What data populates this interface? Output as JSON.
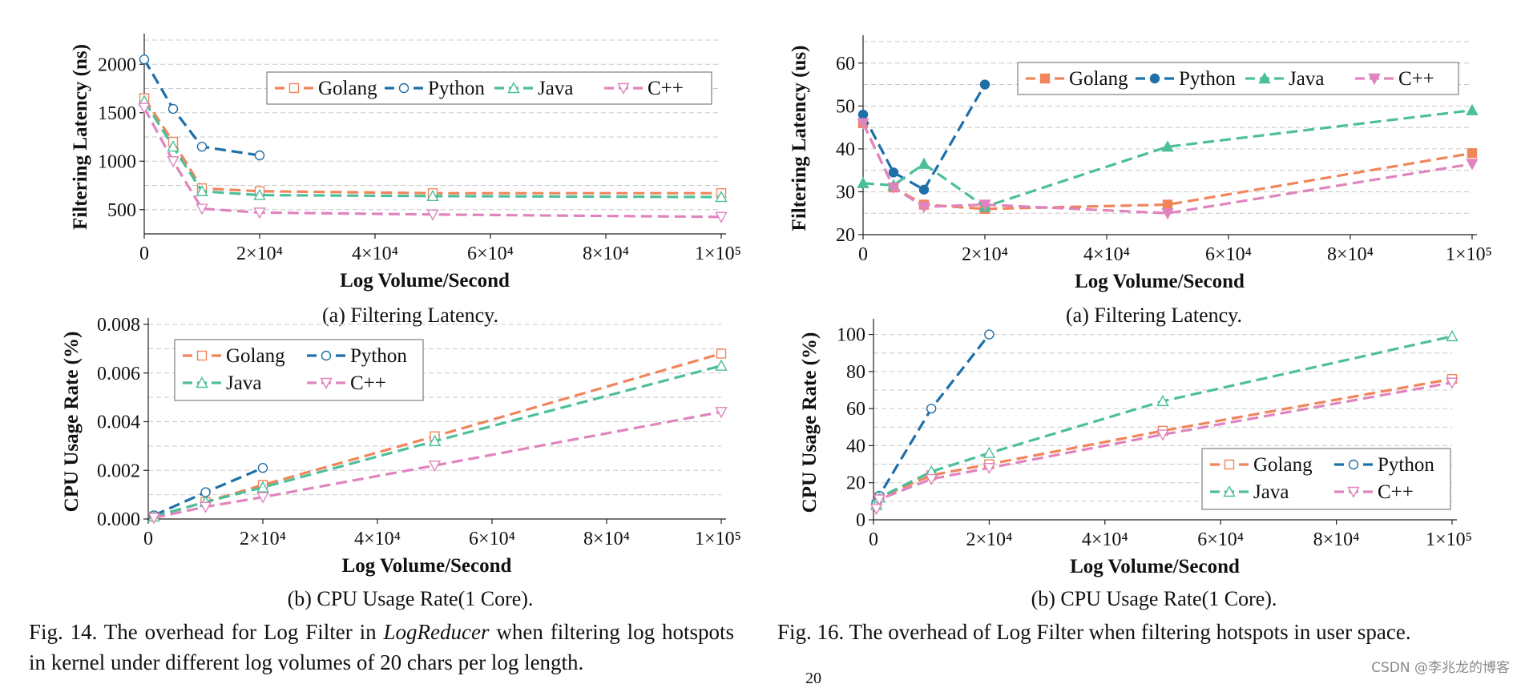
{
  "colors": {
    "Golang": "#f0855a",
    "Python": "#1f6fa8",
    "Java": "#4cbf9a",
    "C++": "#e084bf",
    "grid": "#c8c8c8"
  },
  "chart_data": [
    {
      "id": "fig14a",
      "type": "line",
      "ylabel": "Filtering Latency (ns)",
      "xlabel": "Log Volume/Second",
      "subcaption": "(a) Filtering Latency.",
      "xlim": [
        0,
        100000
      ],
      "ylim": [
        250,
        2250
      ],
      "yticks": [
        500,
        1000,
        1500,
        2000
      ],
      "ytick_labels": [
        "500",
        "1000",
        "1500",
        "2000"
      ],
      "xticks": [
        0,
        20000,
        40000,
        60000,
        80000,
        100000
      ],
      "xtick_labels": [
        "0",
        "2×10⁴",
        "4×10⁴",
        "6×10⁴",
        "8×10⁴",
        "1×10⁵"
      ],
      "minor_grid": true,
      "legend": {
        "position": "top-right",
        "columns": 4
      },
      "markers": "hollow",
      "series": [
        {
          "name": "Golang",
          "marker": "square",
          "x": [
            0,
            5000,
            10000,
            20000,
            50000,
            100000
          ],
          "y": [
            1650,
            1200,
            720,
            690,
            670,
            670
          ]
        },
        {
          "name": "Python",
          "marker": "circle",
          "x": [
            0,
            5000,
            10000,
            20000
          ],
          "y": [
            2050,
            1540,
            1150,
            1060
          ]
        },
        {
          "name": "Java",
          "marker": "triangle-up",
          "x": [
            0,
            5000,
            10000,
            20000,
            50000,
            100000
          ],
          "y": [
            1620,
            1150,
            690,
            650,
            640,
            630
          ]
        },
        {
          "name": "C++",
          "marker": "triangle-down",
          "x": [
            0,
            5000,
            10000,
            20000,
            50000,
            100000
          ],
          "y": [
            1550,
            1000,
            510,
            470,
            450,
            425
          ]
        }
      ]
    },
    {
      "id": "fig14b",
      "type": "line",
      "ylabel": "CPU Usage Rate (%)",
      "xlabel": "Log Volume/Second",
      "subcaption": "(b) CPU Usage Rate(1 Core).",
      "xlim": [
        0,
        100000
      ],
      "ylim": [
        0,
        0.008
      ],
      "yticks": [
        0,
        0.002,
        0.004,
        0.006,
        0.008
      ],
      "ytick_labels": [
        "0.000",
        "0.002",
        "0.004",
        "0.006",
        "0.008"
      ],
      "xticks": [
        0,
        20000,
        40000,
        60000,
        80000,
        100000
      ],
      "xtick_labels": [
        "0",
        "2×10⁴",
        "4×10⁴",
        "6×10⁴",
        "8×10⁴",
        "1×10⁵"
      ],
      "minor_grid": true,
      "legend": {
        "position": "top-left",
        "columns": 2
      },
      "markers": "hollow",
      "series": [
        {
          "name": "Golang",
          "marker": "square",
          "x": [
            1000,
            10000,
            20000,
            50000,
            100000
          ],
          "y": [
            0.0001,
            0.0007,
            0.0014,
            0.0034,
            0.0068
          ]
        },
        {
          "name": "Python",
          "marker": "circle",
          "x": [
            1000,
            10000,
            20000
          ],
          "y": [
            0.00015,
            0.0011,
            0.0021
          ]
        },
        {
          "name": "Java",
          "marker": "triangle-up",
          "x": [
            1000,
            10000,
            20000,
            50000,
            100000
          ],
          "y": [
            0.0001,
            0.0007,
            0.0013,
            0.0032,
            0.0063
          ]
        },
        {
          "name": "C++",
          "marker": "triangle-down",
          "x": [
            1000,
            10000,
            20000,
            50000,
            100000
          ],
          "y": [
            5e-05,
            0.0005,
            0.0009,
            0.0022,
            0.0044
          ]
        }
      ]
    },
    {
      "id": "fig16a",
      "type": "line",
      "ylabel": "Filtering Latency (us)",
      "xlabel": "Log Volume/Second",
      "subcaption": "(a) Filtering Latency.",
      "xlim": [
        0,
        100000
      ],
      "ylim": [
        20,
        65
      ],
      "yticks": [
        20,
        30,
        40,
        50,
        60
      ],
      "ytick_labels": [
        "20",
        "30",
        "40",
        "50",
        "60"
      ],
      "xticks": [
        0,
        20000,
        40000,
        60000,
        80000,
        100000
      ],
      "xtick_labels": [
        "0",
        "2×10⁴",
        "4×10⁴",
        "6×10⁴",
        "8×10⁴",
        "1×10⁵"
      ],
      "minor_grid": true,
      "legend": {
        "position": "top",
        "columns": 4
      },
      "markers": "filled",
      "series": [
        {
          "name": "Golang",
          "marker": "square",
          "x": [
            0,
            5000,
            10000,
            20000,
            50000,
            100000
          ],
          "y": [
            46,
            31,
            27,
            26,
            27,
            39
          ]
        },
        {
          "name": "Python",
          "marker": "circle",
          "x": [
            0,
            5000,
            10000,
            20000
          ],
          "y": [
            48,
            34.5,
            30.5,
            55
          ]
        },
        {
          "name": "Java",
          "marker": "triangle-up",
          "x": [
            0,
            5000,
            10000,
            20000,
            50000,
            100000
          ],
          "y": [
            32,
            31.5,
            36.5,
            26.5,
            40.5,
            49
          ]
        },
        {
          "name": "C++",
          "marker": "triangle-down",
          "x": [
            0,
            5000,
            10000,
            20000,
            50000,
            100000
          ],
          "y": [
            46,
            31,
            26.5,
            27,
            25,
            36.5
          ]
        }
      ]
    },
    {
      "id": "fig16b",
      "type": "line",
      "ylabel": "CPU Usage Rate (%)",
      "xlabel": "Log Volume/Second",
      "subcaption": "(b) CPU Usage Rate(1 Core).",
      "xlim": [
        0,
        100000
      ],
      "ylim": [
        0,
        105
      ],
      "yticks": [
        0,
        20,
        40,
        60,
        80,
        100
      ],
      "ytick_labels": [
        "0",
        "20",
        "40",
        "60",
        "80",
        "100"
      ],
      "xticks": [
        0,
        20000,
        40000,
        60000,
        80000,
        100000
      ],
      "xtick_labels": [
        "0",
        "2×10⁴",
        "4×10⁴",
        "6×10⁴",
        "8×10⁴",
        "1×10⁵"
      ],
      "minor_grid": true,
      "legend": {
        "position": "bottom-right",
        "columns": 2
      },
      "markers": "hollow",
      "series": [
        {
          "name": "Golang",
          "marker": "square",
          "x": [
            500,
            1000,
            10000,
            20000,
            50000,
            100000
          ],
          "y": [
            8,
            12,
            24,
            30,
            48,
            76
          ]
        },
        {
          "name": "Python",
          "marker": "circle",
          "x": [
            500,
            1000,
            10000,
            20000
          ],
          "y": [
            9,
            13,
            60,
            100
          ]
        },
        {
          "name": "Java",
          "marker": "triangle-up",
          "x": [
            500,
            1000,
            10000,
            20000,
            50000,
            100000
          ],
          "y": [
            8,
            12,
            26,
            36,
            64,
            99
          ]
        },
        {
          "name": "C++",
          "marker": "triangle-down",
          "x": [
            500,
            1000,
            10000,
            20000,
            50000,
            100000
          ],
          "y": [
            6,
            11,
            22,
            28,
            46,
            74
          ]
        }
      ]
    }
  ],
  "captions": {
    "fig14": {
      "prefix": "Fig. 14.   The overhead for Log Filter in ",
      "emph": "LogReducer",
      "suffix": " when filtering log hotspots in kernel under different log volumes of 20 chars per log length."
    },
    "fig16": {
      "text": "Fig. 16.  The overhead of Log Filter when filtering hotspots in user space."
    }
  },
  "overflow_fragment": "20",
  "watermark": "CSDN @李兆龙的博客"
}
